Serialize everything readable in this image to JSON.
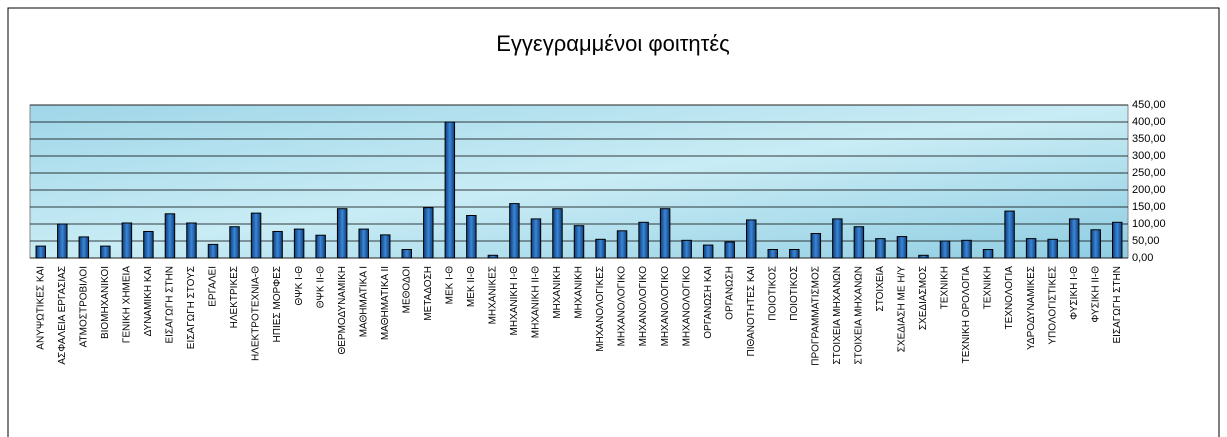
{
  "chart_data": {
    "type": "bar",
    "title": "Εγγεγραμμένοι φοιτητές",
    "categories": [
      "ΑΝΥΨΩΤΙΚΕΣ ΚΑΙ",
      "ΑΣΦΑΛΕΙΑ ΕΡΓΑΣΙΑΣ",
      "ΑΤΜΟΣΤΡΟΒΙΛΟΙ",
      "ΒΙΟΜΗΧΑΝΙΚΟΙ",
      "ΓΕΝΙΚΗ ΧΗΜΕΙΑ",
      "ΔΥΝΑΜΙΚΗ ΚΑΙ",
      "ΕΙΣΑΓΩΓΗ ΣΤΗΝ",
      "ΕΙΣΑΓΩΓΗ ΣΤΟΥΣ",
      "ΕΡΓΑΛΕΙ",
      "ΗΛΕΚΤΡΙΚΕΣ",
      "ΗΛΕΚΤΡΟΤΕΧΝΙΑ-Θ",
      "ΗΠΙΕΣ ΜΟΡΦΕΣ",
      "ΘΨΚ Ι-Θ",
      "ΘΨΚ ΙΙ-Θ",
      "ΘΕΡΜΟΔΥΝΑΜΙΚΗ",
      "ΜΑΘΗΜΑΤΙΚΑ Ι",
      "ΜΑΘΗΜΑΤΙΚΑ ΙΙ",
      "ΜΕΘΟΔΟΙ",
      "ΜΕΤΑΔΟΣΗ",
      "ΜΕΚ Ι-Θ",
      "ΜΕΚ ΙΙ-Θ",
      "ΜΗΧΑΝΙΚΕΣ",
      "ΜΗΧΑΝΙΚΗ Ι-Θ",
      "ΜΗΧΑΝΙΚΗ ΙΙ-Θ",
      "ΜΗΧΑΝΙΚΗ",
      "ΜΗΧΑΝΙΚΗ",
      "ΜΗΧΑΝΟΛΟΓΙΚΕΣ",
      "ΜΗΧΑΝΟΛΟΓΙΚΟ",
      "ΜΗΧΑΝΟΛΟΓΙΚΟ",
      "ΜΗΧΑΝΟΛΟΓΙΚΟ",
      "ΜΗΧΑΝΟΛΟΓΙΚΟ",
      "ΟΡΓΑΝΩΣΗ ΚΑΙ",
      "ΟΡΓΑΝΩΣΗ",
      "ΠΙΘΑΝΟΤΗΤΕΣ ΚΑΙ",
      "ΠΟΙΟΤΙΚΟΣ",
      "ΠΟΙΟΤΙΚΟΣ",
      "ΠΡΟΓΡΑΜΜΑΤΙΣΜΟΣ",
      "ΣΤΟΙΧΕΙΑ ΜΗΧΑΝΩΝ",
      "ΣΤΟΙΧΕΙΑ ΜΗΧΑΝΩΝ",
      "ΣΤΟΙΧΕΙΑ",
      "ΣΧΕΔΙΑΣΗ ΜΕ Η/Υ",
      "ΣΧΕΔΙΑΣΜΟΣ",
      "ΤΕΧΝΙΚΗ",
      "ΤΕΧΝΙΚΗ ΟΡΟΛΟΓΙΑ",
      "ΤΕΧΝΙΚΗ",
      "ΤΕΧΝΟΛΟΓΙΑ",
      "ΥΔΡΟΔΥΝΑΜΙΚΕΣ",
      "ΥΠΟΛΟΓΙΣΤΙΚΕΣ",
      "ΦΥΣΙΚΗ Ι-Θ",
      "ΦΥΣΙΚΗ ΙΙ-Θ",
      "ΕΙΣΑΓΩΓΗ ΣΤΗΝ"
    ],
    "values": [
      35,
      100,
      62,
      35,
      103,
      78,
      130,
      103,
      40,
      92,
      132,
      78,
      85,
      67,
      145,
      85,
      68,
      25,
      148,
      400,
      125,
      8,
      160,
      115,
      145,
      95,
      55,
      80,
      105,
      145,
      52,
      38,
      47,
      112,
      25,
      25,
      72,
      115,
      92,
      57,
      63,
      8,
      50,
      52,
      25,
      138,
      57,
      55,
      115,
      83,
      105
    ],
    "color": "#1f5fa8",
    "ylim": [
      0,
      450
    ],
    "yticks": [
      {
        "value": 0,
        "label": "0,00"
      },
      {
        "value": 50,
        "label": "50,00"
      },
      {
        "value": 100,
        "label": "100,00"
      },
      {
        "value": 150,
        "label": "150,00"
      },
      {
        "value": 200,
        "label": "200,00"
      },
      {
        "value": 250,
        "label": "250,00"
      },
      {
        "value": 300,
        "label": "300,00"
      },
      {
        "value": 350,
        "label": "350,00"
      },
      {
        "value": 400,
        "label": "400,00"
      },
      {
        "value": 450,
        "label": "450,00"
      }
    ],
    "grid": true
  }
}
